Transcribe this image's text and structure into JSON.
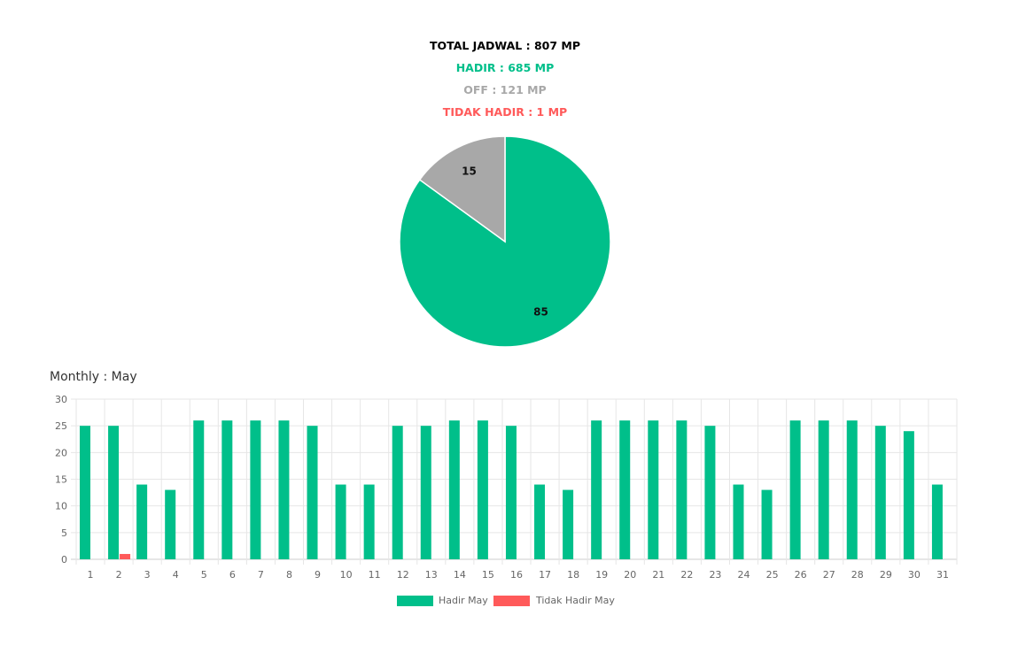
{
  "summary": {
    "total": "TOTAL JADWAL : 807 MP",
    "hadir": "HADIR : 685 MP",
    "off": "OFF : 121 MP",
    "tidak_hadir": "TIDAK HADIR : 1 MP"
  },
  "colors": {
    "hadir": "#00BF8A",
    "off": "#A8A8A8",
    "tidak_hadir": "#FF5A5A",
    "total": "#000000"
  },
  "monthly_title": "Monthly : May",
  "chart_data": [
    {
      "type": "pie",
      "slices": [
        {
          "label": "Hadir",
          "value": 85,
          "color": "#00BF8A"
        },
        {
          "label": "Off",
          "value": 15,
          "color": "#A8A8A8"
        }
      ],
      "data_labels": [
        "85",
        "15"
      ]
    },
    {
      "type": "bar",
      "categories": [
        "1",
        "2",
        "3",
        "4",
        "5",
        "6",
        "7",
        "8",
        "9",
        "10",
        "11",
        "12",
        "13",
        "14",
        "15",
        "16",
        "17",
        "18",
        "19",
        "20",
        "21",
        "22",
        "23",
        "24",
        "25",
        "26",
        "27",
        "28",
        "29",
        "30",
        "31"
      ],
      "series": [
        {
          "name": "Hadir May",
          "color": "#00BF8A",
          "values": [
            25,
            25,
            14,
            13,
            26,
            26,
            26,
            26,
            25,
            14,
            14,
            25,
            25,
            26,
            26,
            25,
            14,
            13,
            26,
            26,
            26,
            26,
            25,
            14,
            13,
            26,
            26,
            26,
            25,
            24,
            14
          ]
        },
        {
          "name": "Tidak Hadir May",
          "color": "#FF5A5A",
          "values": [
            0,
            1,
            0,
            0,
            0,
            0,
            0,
            0,
            0,
            0,
            0,
            0,
            0,
            0,
            0,
            0,
            0,
            0,
            0,
            0,
            0,
            0,
            0,
            0,
            0,
            0,
            0,
            0,
            0,
            0,
            0
          ]
        }
      ],
      "ylim": [
        0,
        30
      ],
      "yticks": [
        0,
        5,
        10,
        15,
        20,
        25,
        30
      ],
      "grid": true,
      "legend": "bottom"
    }
  ]
}
